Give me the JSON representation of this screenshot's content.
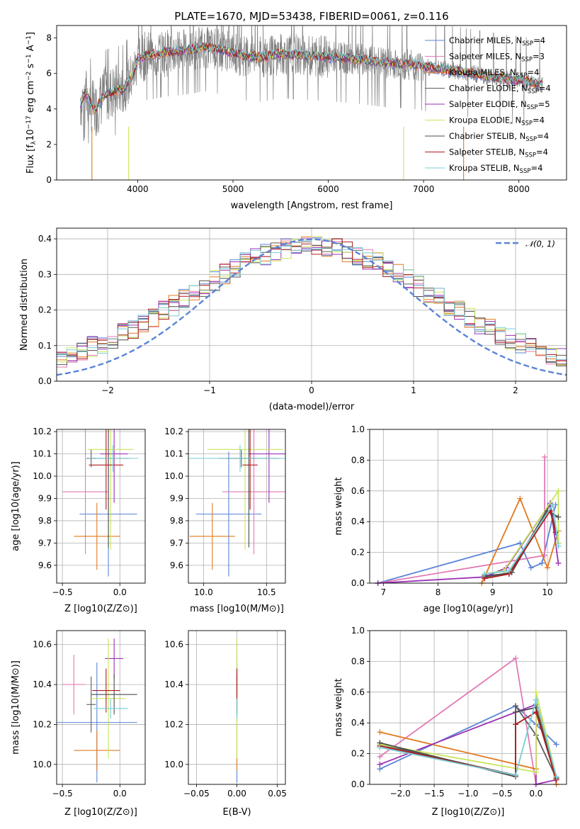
{
  "figure": {
    "title": "PLATE=1670, MJD=53438, FIBERID=0061, z=0.116"
  },
  "colors": {
    "Chabrier MILES": "#5b84d7",
    "Salpeter MILES": "#e27bb5",
    "Kroupa MILES": "#e07a1f",
    "Chabrier ELODIE": "#5c5c5c",
    "Salpeter ELODIE": "#9b30b5",
    "Kroupa ELODIE": "#c8e65a",
    "Chabrier STELIB": "#4d4d4d",
    "Salpeter STELIB": "#b01c1c",
    "Kroupa STELIB": "#78cdd6",
    "data": "#808080",
    "normal": "#5b84d7"
  },
  "legend_spectrum": [
    "Chabrier MILES, N_SSP=4",
    "Salpeter MILES, N_SSP=3",
    "Kroupa MILES, N_SSP=4",
    "Chabrier ELODIE, N_SSP=4",
    "Salpeter ELODIE, N_SSP=5",
    "Kroupa ELODIE, N_SSP=4",
    "Chabrier STELIB, N_SSP=4",
    "Salpeter STELIB, N_SSP=4",
    "Kroupa STELIB, N_SSP=4"
  ],
  "legend_hist": [
    "𝒩(0, 1)"
  ],
  "chart_data": [
    {
      "type": "line",
      "title": "PLATE=1670, MJD=53438, FIBERID=0061, z=0.116",
      "xlabel": "wavelength [Angstrom, rest frame]",
      "ylabel": "Flux [f_λ 10^-17 erg cm^-2 s^-1 A^-1]",
      "xlim": [
        3150,
        8500
      ],
      "ylim": [
        0,
        8.7
      ],
      "xticks": [
        4000,
        5000,
        6000,
        7000,
        8000
      ],
      "yticks": [
        0,
        2,
        4,
        6,
        8
      ],
      "model_shape": {
        "x": [
          3400,
          3450,
          3550,
          3650,
          3750,
          3850,
          3950,
          4000,
          4100,
          4300,
          4500,
          4700,
          4900,
          5100,
          5300,
          5500,
          5800,
          6100,
          6300,
          6600,
          6900,
          7100,
          7400,
          7700,
          8000,
          8250
        ],
        "y": [
          4.3,
          4.9,
          3.9,
          4.8,
          5.0,
          5.1,
          5.9,
          6.8,
          7.0,
          7.2,
          7.3,
          7.5,
          7.3,
          7.0,
          6.9,
          7.1,
          7.0,
          6.9,
          6.8,
          6.6,
          6.5,
          6.3,
          6.1,
          5.8,
          5.6,
          5.4
        ]
      },
      "grid": false,
      "legend": "right"
    },
    {
      "type": "bar",
      "xlabel": "(data-model)/error",
      "ylabel": "Normed distribution",
      "xlim": [
        -2.5,
        2.5
      ],
      "ylim": [
        0,
        0.43
      ],
      "xticks": [
        -2,
        -1,
        0,
        1,
        2
      ],
      "yticks": [
        0.0,
        0.1,
        0.2,
        0.3,
        0.4
      ],
      "bin_width": 0.1,
      "grid": true,
      "legend": "top-right"
    },
    {
      "type": "scatter",
      "xlabel": "Z [log10(Z/Z⊙)]",
      "ylabel": "age  [log10(age/yr)]",
      "xlim": [
        -0.55,
        0.22
      ],
      "ylim": [
        9.52,
        10.21
      ],
      "xticks": [
        "−0.5",
        "0.0"
      ],
      "yticks": [
        "9.6",
        "9.7",
        "9.8",
        "9.9",
        "10.0",
        "10.1",
        "10.2"
      ],
      "series": [
        {
          "model": "Chabrier MILES",
          "x": -0.1,
          "xerr": 0.25,
          "y": 9.83,
          "yerr": 0.28
        },
        {
          "model": "Salpeter MILES",
          "x": -0.3,
          "xerr": 0.2,
          "y": 9.93,
          "yerr": 0.28
        },
        {
          "model": "Kroupa MILES",
          "x": -0.2,
          "xerr": 0.2,
          "y": 9.73,
          "yerr": 0.15
        },
        {
          "model": "Chabrier ELODIE",
          "x": -0.25,
          "xerr": 0.04,
          "y": 10.08,
          "yerr": 0.04
        },
        {
          "model": "Salpeter ELODIE",
          "x": -0.05,
          "xerr": 0.12,
          "y": 10.1,
          "yerr": 0.22
        },
        {
          "model": "Kroupa ELODIE",
          "x": -0.08,
          "xerr": 0.2,
          "y": 10.12,
          "yerr": 0.45
        },
        {
          "model": "Chabrier STELIB",
          "x": -0.1,
          "xerr": 0.18,
          "y": 10.08,
          "yerr": 0.4
        },
        {
          "model": "Salpeter STELIB",
          "x": -0.12,
          "xerr": 0.15,
          "y": 10.05,
          "yerr": 0.2
        },
        {
          "model": "Kroupa STELIB",
          "x": -0.06,
          "xerr": 0.22,
          "y": 10.08,
          "yerr": 0.06
        }
      ]
    },
    {
      "type": "scatter",
      "xlabel": "mass [log10(M/M⊙)]",
      "ylabel": "",
      "xlim": [
        9.88,
        10.65
      ],
      "ylim": [
        9.52,
        10.21
      ],
      "xticks": [
        "10.0",
        "10.5"
      ],
      "yticks": [
        "9.6",
        "9.7",
        "9.8",
        "9.9",
        "10.0",
        "10.1",
        "10.2"
      ],
      "series": [
        {
          "model": "Chabrier MILES",
          "x": 10.2,
          "xerr": 0.26,
          "y": 9.83,
          "yerr": 0.28
        },
        {
          "model": "Salpeter MILES",
          "x": 10.4,
          "xerr": 0.25,
          "y": 9.93,
          "yerr": 0.28
        },
        {
          "model": "Kroupa MILES",
          "x": 10.07,
          "xerr": 0.18,
          "y": 9.73,
          "yerr": 0.15
        },
        {
          "model": "Chabrier ELODIE",
          "x": 10.3,
          "xerr": 0.12,
          "y": 10.08,
          "yerr": 0.04
        },
        {
          "model": "Salpeter ELODIE",
          "x": 10.52,
          "xerr": 0.16,
          "y": 10.1,
          "yerr": 0.22
        },
        {
          "model": "Kroupa ELODIE",
          "x": 10.33,
          "xerr": 0.3,
          "y": 10.12,
          "yerr": 0.45
        },
        {
          "model": "Chabrier STELIB",
          "x": 10.36,
          "xerr": 0.24,
          "y": 10.08,
          "yerr": 0.4
        },
        {
          "model": "Salpeter STELIB",
          "x": 10.37,
          "xerr": 0.06,
          "y": 10.05,
          "yerr": 0.2
        },
        {
          "model": "Kroupa STELIB",
          "x": 10.29,
          "xerr": 0.42,
          "y": 10.08,
          "yerr": 0.06
        }
      ]
    },
    {
      "type": "line",
      "xlabel": "age  [log10(age/yr)]",
      "ylabel": "mass weight",
      "xlim": [
        6.75,
        10.35
      ],
      "ylim": [
        0,
        1.0
      ],
      "xticks": [
        "7",
        "8",
        "9",
        "10"
      ],
      "yticks": [
        "0.0",
        "0.2",
        "0.4",
        "0.6",
        "0.8",
        "1.0"
      ],
      "grid": true,
      "series": [
        {
          "model": "Chabrier MILES",
          "x": [
            6.9,
            9.5,
            9.7,
            9.9,
            10.15
          ],
          "y": [
            0.0,
            0.26,
            0.1,
            0.13,
            0.51
          ]
        },
        {
          "model": "Salpeter MILES",
          "x": [
            6.9,
            9.95,
            9.95
          ],
          "y": [
            0.0,
            0.18,
            0.82
          ]
        },
        {
          "model": "Kroupa MILES",
          "x": [
            8.8,
            9.5,
            10.0,
            10.2
          ],
          "y": [
            0.0,
            0.55,
            0.1,
            0.34
          ]
        },
        {
          "model": "Chabrier ELODIE",
          "x": [
            8.85,
            9.3,
            10.05,
            10.2
          ],
          "y": [
            0.05,
            0.06,
            0.51,
            0.26
          ]
        },
        {
          "model": "Salpeter ELODIE",
          "x": [
            6.9,
            8.85,
            9.25,
            10.05,
            10.2
          ],
          "y": [
            0.0,
            0.04,
            0.1,
            0.52,
            0.13
          ]
        },
        {
          "model": "Kroupa ELODIE",
          "x": [
            8.85,
            9.2,
            10.2,
            10.2
          ],
          "y": [
            0.06,
            0.08,
            0.6,
            0.26
          ]
        },
        {
          "model": "Chabrier STELIB",
          "x": [
            8.85,
            9.35,
            10.0,
            10.2
          ],
          "y": [
            0.04,
            0.07,
            0.47,
            0.43
          ]
        },
        {
          "model": "Salpeter STELIB",
          "x": [
            8.85,
            9.3,
            10.05,
            10.15
          ],
          "y": [
            0.03,
            0.06,
            0.47,
            0.33
          ]
        },
        {
          "model": "Kroupa STELIB",
          "x": [
            8.85,
            9.3,
            10.1,
            10.2
          ],
          "y": [
            0.06,
            0.08,
            0.51,
            0.24
          ]
        }
      ]
    },
    {
      "type": "scatter",
      "xlabel": "Z [log10(Z/Z⊙)]",
      "ylabel": "mass [log10(M/M⊙)]",
      "xlim": [
        -0.55,
        0.22
      ],
      "ylim": [
        9.9,
        10.67
      ],
      "xticks": [
        "−0.5",
        "0.0"
      ],
      "yticks": [
        "10.0",
        "10.2",
        "10.4",
        "10.6"
      ],
      "series": [
        {
          "model": "Chabrier MILES",
          "x": -0.2,
          "xerr": 0.35,
          "y": 10.21,
          "yerr": 0.3
        },
        {
          "model": "Salpeter MILES",
          "x": -0.4,
          "xerr": 0.1,
          "y": 10.4,
          "yerr": 0.15
        },
        {
          "model": "Kroupa MILES",
          "x": -0.2,
          "xerr": 0.2,
          "y": 10.07,
          "yerr": 0.1
        },
        {
          "model": "Chabrier ELODIE",
          "x": -0.25,
          "xerr": 0.04,
          "y": 10.3,
          "yerr": 0.14
        },
        {
          "model": "Salpeter ELODIE",
          "x": -0.05,
          "xerr": 0.08,
          "y": 10.53,
          "yerr": 0.1
        },
        {
          "model": "Kroupa ELODIE",
          "x": -0.1,
          "xerr": 0.15,
          "y": 10.33,
          "yerr": 0.3
        },
        {
          "model": "Chabrier STELIB",
          "x": -0.05,
          "xerr": 0.2,
          "y": 10.35,
          "yerr": 0.1
        },
        {
          "model": "Salpeter STELIB",
          "x": -0.12,
          "xerr": 0.12,
          "y": 10.37,
          "yerr": 0.11
        },
        {
          "model": "Kroupa STELIB",
          "x": -0.08,
          "xerr": 0.15,
          "y": 10.28,
          "yerr": 0.05
        }
      ]
    },
    {
      "type": "scatter",
      "xlabel": "E(B-V)",
      "ylabel": "",
      "xlim": [
        -0.06,
        0.06
      ],
      "ylim": [
        9.9,
        10.67
      ],
      "xticks": [
        "−0.05",
        "0.00",
        "0.05"
      ],
      "yticks": [
        "10.0",
        "10.2",
        "10.4",
        "10.6"
      ],
      "series": [
        {
          "model": "Chabrier MILES",
          "x": 0,
          "y": 10.21,
          "yerr": 0.3
        },
        {
          "model": "Salpeter MILES",
          "x": 0,
          "y": 10.4,
          "yerr": 0.15
        },
        {
          "model": "Kroupa MILES",
          "x": 0,
          "y": 10.07,
          "yerr": 0.1
        },
        {
          "model": "Chabrier ELODIE",
          "x": 0,
          "y": 10.3,
          "yerr": 0.14
        },
        {
          "model": "Salpeter ELODIE",
          "x": 0,
          "y": 10.53,
          "yerr": 0.1
        },
        {
          "model": "Kroupa ELODIE",
          "x": 0,
          "y": 10.33,
          "yerr": 0.3
        },
        {
          "model": "Chabrier STELIB",
          "x": 0,
          "y": 10.35,
          "yerr": 0.1
        },
        {
          "model": "Salpeter STELIB",
          "x": 0,
          "y": 10.37,
          "yerr": 0.11
        },
        {
          "model": "Kroupa STELIB",
          "x": 0,
          "y": 10.28,
          "yerr": 0.05
        }
      ]
    },
    {
      "type": "line",
      "xlabel": "Z [log10(Z/Z⊙)]",
      "ylabel": "mass weight",
      "xlim": [
        -2.45,
        0.45
      ],
      "ylim": [
        0,
        1.0
      ],
      "xticks": [
        "−2.0",
        "−1.5",
        "−1.0",
        "−0.5",
        "0.0"
      ],
      "yticks": [
        "0.0",
        "0.2",
        "0.4",
        "0.6",
        "0.8",
        "1.0"
      ],
      "grid": true,
      "series": [
        {
          "model": "Chabrier MILES",
          "x": [
            -2.3,
            -0.3,
            0.0,
            0.3
          ],
          "y": [
            0.1,
            0.51,
            0.39,
            0.26
          ]
        },
        {
          "model": "Salpeter MILES",
          "x": [
            -2.3,
            -0.3,
            0.0
          ],
          "y": [
            0.18,
            0.82,
            0.0
          ]
        },
        {
          "model": "Kroupa MILES",
          "x": [
            -2.3,
            0.0,
            0.0,
            0.3
          ],
          "y": [
            0.34,
            0.1,
            0.55,
            0.0
          ]
        },
        {
          "model": "Chabrier ELODIE",
          "x": [
            -2.3,
            -0.3,
            -0.3,
            0.0,
            0.3
          ],
          "y": [
            0.26,
            0.06,
            0.51,
            0.32,
            0.04
          ]
        },
        {
          "model": "Salpeter ELODIE",
          "x": [
            -2.3,
            0.0,
            0.0,
            0.3
          ],
          "y": [
            0.13,
            0.52,
            0.0,
            0.03
          ]
        },
        {
          "model": "Kroupa ELODIE",
          "x": [
            -2.3,
            0.0,
            0.0,
            0.3
          ],
          "y": [
            0.26,
            0.08,
            0.6,
            0.05
          ]
        },
        {
          "model": "Chabrier STELIB",
          "x": [
            -2.3,
            -0.3,
            -0.3,
            0.0,
            0.3
          ],
          "y": [
            0.27,
            0.05,
            0.47,
            0.5,
            0.04
          ]
        },
        {
          "model": "Salpeter STELIB",
          "x": [
            -2.3,
            -0.3,
            -0.3,
            0.0,
            0.3
          ],
          "y": [
            0.25,
            0.06,
            0.39,
            0.47,
            0.03
          ]
        },
        {
          "model": "Kroupa STELIB",
          "x": [
            -2.3,
            -0.3,
            0.0,
            0.3
          ],
          "y": [
            0.24,
            0.06,
            0.55,
            0.05
          ]
        }
      ]
    }
  ]
}
